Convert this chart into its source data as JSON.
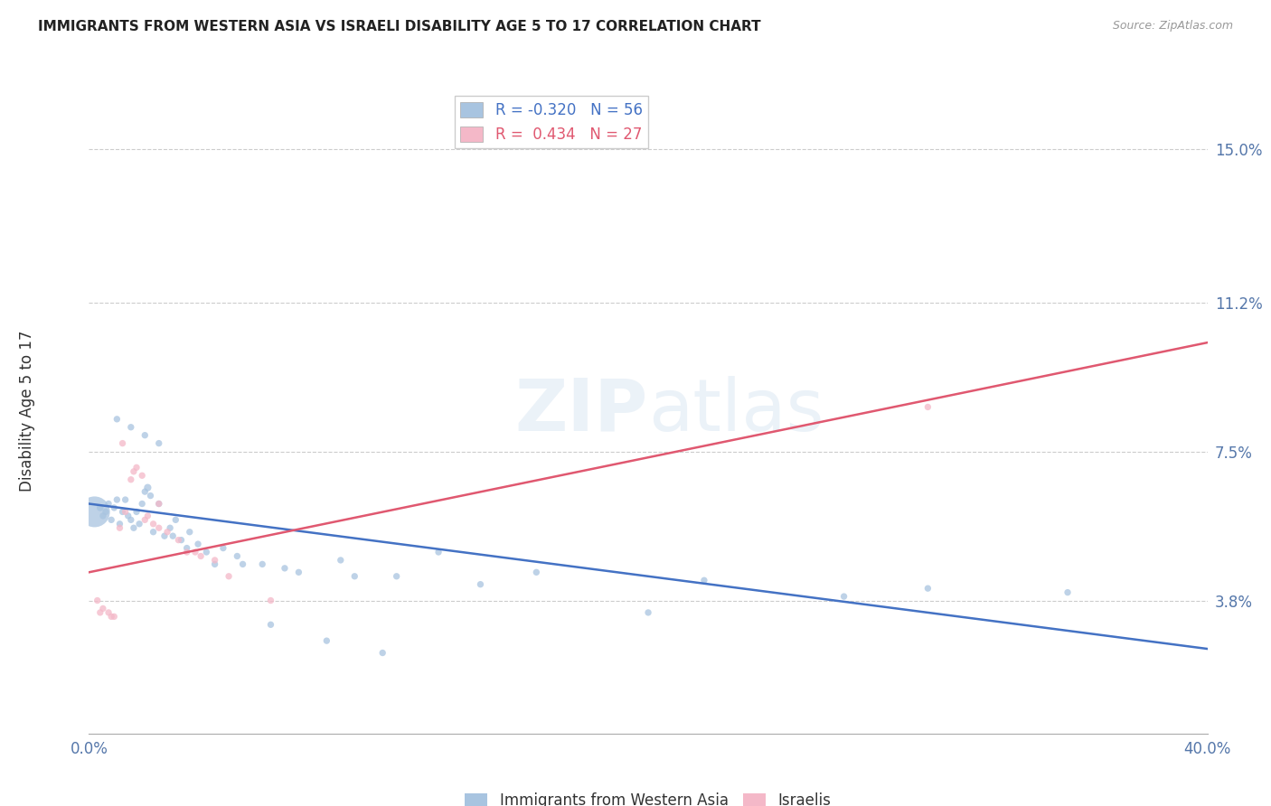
{
  "title": "IMMIGRANTS FROM WESTERN ASIA VS ISRAELI DISABILITY AGE 5 TO 17 CORRELATION CHART",
  "source": "Source: ZipAtlas.com",
  "ylabel": "Disability Age 5 to 17",
  "ytick_labels": [
    "3.8%",
    "7.5%",
    "11.2%",
    "15.0%"
  ],
  "ytick_values": [
    3.8,
    7.5,
    11.2,
    15.0
  ],
  "xlim": [
    0.0,
    40.0
  ],
  "ylim": [
    0.5,
    16.5
  ],
  "legend_blue_r": "-0.320",
  "legend_blue_n": "56",
  "legend_pink_r": "0.434",
  "legend_pink_n": "27",
  "legend_label_blue": "Immigrants from Western Asia",
  "legend_label_pink": "Israelis",
  "watermark": "ZIPatlas",
  "blue_color": "#a8c4e0",
  "blue_line_color": "#4472c4",
  "pink_color": "#f4b8c8",
  "pink_line_color": "#e05870",
  "blue_scatter_x": [
    0.2,
    0.4,
    0.5,
    0.6,
    0.7,
    0.8,
    0.9,
    1.0,
    1.1,
    1.2,
    1.3,
    1.4,
    1.5,
    1.6,
    1.7,
    1.8,
    1.9,
    2.0,
    2.1,
    2.2,
    2.3,
    2.5,
    2.7,
    2.9,
    3.1,
    3.3,
    3.6,
    3.9,
    4.2,
    4.8,
    5.3,
    6.2,
    7.5,
    9.0,
    11.0,
    14.0,
    20.0,
    27.0,
    35.0,
    1.0,
    1.5,
    2.0,
    2.5,
    3.0,
    3.5,
    4.5,
    5.5,
    7.0,
    9.5,
    12.5,
    16.0,
    22.0,
    30.0,
    6.5,
    8.5,
    10.5
  ],
  "blue_scatter_y": [
    6.0,
    6.1,
    5.9,
    6.0,
    6.2,
    5.8,
    6.1,
    6.3,
    5.7,
    6.0,
    6.3,
    5.9,
    5.8,
    5.6,
    6.0,
    5.7,
    6.2,
    6.5,
    6.6,
    6.4,
    5.5,
    6.2,
    5.4,
    5.6,
    5.8,
    5.3,
    5.5,
    5.2,
    5.0,
    5.1,
    4.9,
    4.7,
    4.5,
    4.8,
    4.4,
    4.2,
    3.5,
    3.9,
    4.0,
    8.3,
    8.1,
    7.9,
    7.7,
    5.4,
    5.1,
    4.7,
    4.7,
    4.6,
    4.4,
    5.0,
    4.5,
    4.3,
    4.1,
    3.2,
    2.8,
    2.5
  ],
  "blue_scatter_sizes": [
    600,
    30,
    28,
    28,
    28,
    28,
    28,
    28,
    28,
    28,
    28,
    28,
    28,
    28,
    28,
    28,
    28,
    28,
    35,
    28,
    28,
    28,
    28,
    28,
    28,
    28,
    28,
    28,
    28,
    28,
    28,
    28,
    28,
    28,
    28,
    28,
    28,
    28,
    28,
    28,
    28,
    28,
    28,
    28,
    28,
    28,
    28,
    28,
    28,
    28,
    28,
    28,
    28,
    28,
    28,
    28
  ],
  "pink_scatter_x": [
    0.3,
    0.5,
    0.7,
    0.9,
    1.1,
    1.3,
    1.5,
    1.7,
    1.9,
    2.1,
    2.3,
    2.5,
    2.8,
    3.2,
    3.8,
    4.5,
    6.5,
    30.0,
    0.4,
    0.8,
    1.2,
    1.6,
    2.0,
    2.5,
    3.5,
    4.0,
    5.0
  ],
  "pink_scatter_y": [
    3.8,
    3.6,
    3.5,
    3.4,
    5.6,
    6.0,
    6.8,
    7.1,
    6.9,
    5.9,
    5.7,
    6.2,
    5.5,
    5.3,
    5.0,
    4.8,
    3.8,
    8.6,
    3.5,
    3.4,
    7.7,
    7.0,
    5.8,
    5.6,
    5.0,
    4.9,
    4.4
  ],
  "pink_scatter_sizes": [
    28,
    28,
    28,
    28,
    28,
    28,
    28,
    28,
    28,
    28,
    28,
    28,
    28,
    28,
    28,
    28,
    28,
    28,
    28,
    28,
    28,
    28,
    28,
    28,
    28,
    28,
    28
  ],
  "blue_trend_x": [
    0.0,
    40.0
  ],
  "blue_trend_y": [
    6.2,
    2.6
  ],
  "pink_trend_x": [
    0.0,
    40.0
  ],
  "pink_trend_y": [
    4.5,
    10.2
  ]
}
